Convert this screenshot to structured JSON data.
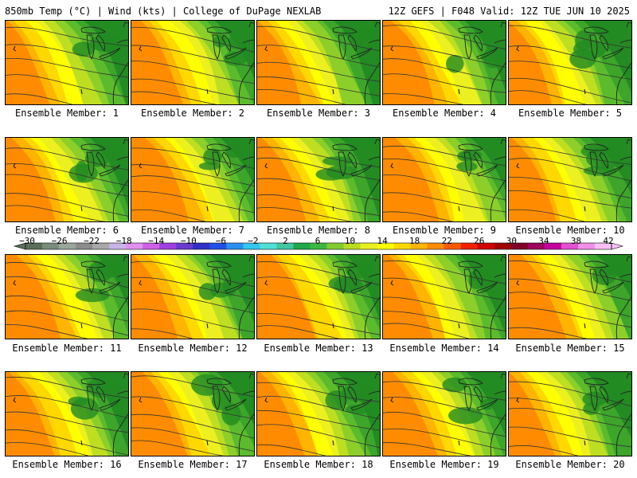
{
  "header": {
    "left": "850mb Temp (°C) | Wind (kts) | College of DuPage NEXLAB",
    "right": "12Z GEFS | F048 Valid: 12Z TUE JUN 10 2025"
  },
  "members": [
    "Ensemble Member: 1",
    "Ensemble Member: 2",
    "Ensemble Member: 3",
    "Ensemble Member: 4",
    "Ensemble Member: 5",
    "Ensemble Member: 6",
    "Ensemble Member: 7",
    "Ensemble Member: 8",
    "Ensemble Member: 9",
    "Ensemble Member: 10",
    "Ensemble Member: 11",
    "Ensemble Member: 12",
    "Ensemble Member: 13",
    "Ensemble Member: 14",
    "Ensemble Member: 15",
    "Ensemble Member: 16",
    "Ensemble Member: 17",
    "Ensemble Member: 18",
    "Ensemble Member: 19",
    "Ensemble Member: 20"
  ],
  "colorbar": {
    "labels": [
      "−30",
      "−26",
      "−22",
      "−18",
      "−14",
      "−10",
      "−6",
      "−2",
      "2",
      "6",
      "10",
      "14",
      "18",
      "22",
      "26",
      "30",
      "34",
      "38",
      "42"
    ],
    "colors": [
      "#5a6e5a",
      "#7a8c7a",
      "#9aa69a",
      "#8c8c8c",
      "#a8a8a8",
      "#c8b4e6",
      "#e090f0",
      "#d060e8",
      "#a040e0",
      "#6a3ad0",
      "#3030c8",
      "#2050e8",
      "#2a90f0",
      "#30c8f0",
      "#50e0d8",
      "#40c8a0",
      "#20a848",
      "#3cb840",
      "#80cc30",
      "#b8dc20",
      "#e8f020",
      "#ffff00",
      "#ffd800",
      "#ffb400",
      "#ff8c00",
      "#ff5a00",
      "#f02000",
      "#d00000",
      "#a00000",
      "#800028",
      "#a00060",
      "#c800a0",
      "#e050d0",
      "#f090e8",
      "#f8c0f4"
    ]
  },
  "map_colors": [
    "#228b22",
    "#3ca52a",
    "#5cbb2c",
    "#8ccf2a",
    "#bede22",
    "#ecf020",
    "#ffff00",
    "#ffd800",
    "#ffb400",
    "#ff8c00"
  ]
}
